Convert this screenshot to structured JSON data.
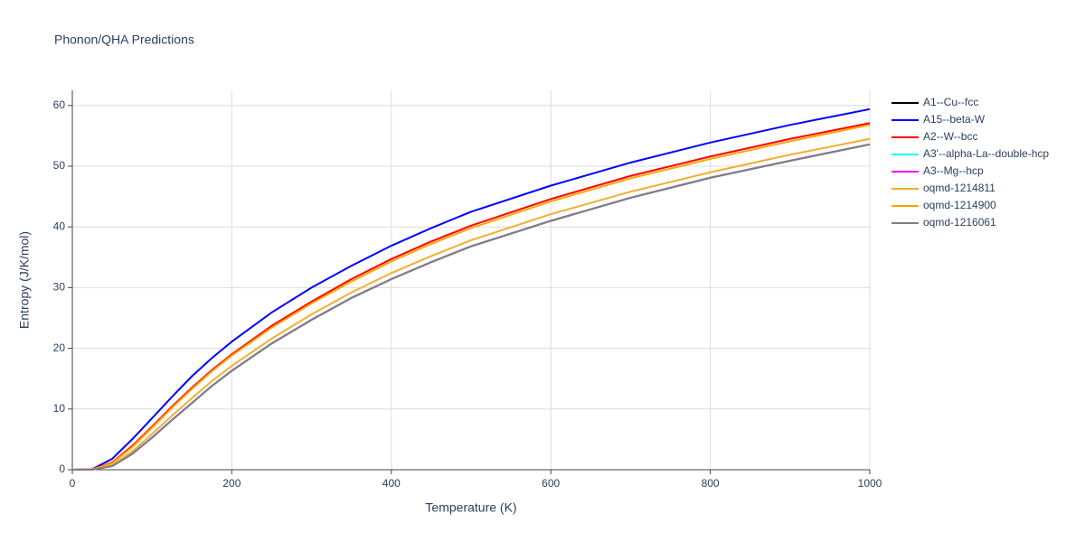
{
  "chart_data": {
    "type": "line",
    "title": "Phonon/QHA Predictions",
    "x_label": "Temperature (K)",
    "y_label": "Entropy (J/K/mol)",
    "x": [
      0,
      25,
      50,
      75,
      100,
      125,
      150,
      175,
      200,
      250,
      300,
      350,
      400,
      450,
      500,
      600,
      700,
      800,
      900,
      1000
    ],
    "series": [
      {
        "name": "A1--Cu--fcc",
        "color": "#000000",
        "values": [
          0,
          0.01,
          0.6,
          2.6,
          5.3,
          8.2,
          11.0,
          13.8,
          16.3,
          20.8,
          24.7,
          28.3,
          31.4,
          34.2,
          36.8,
          41.0,
          44.8,
          48.1,
          50.9,
          53.6
        ]
      },
      {
        "name": "A15--beta-W",
        "color": "#0000ff",
        "values": [
          0,
          0.1,
          1.8,
          5.0,
          8.5,
          12.0,
          15.4,
          18.4,
          21.1,
          25.9,
          30.0,
          33.6,
          36.9,
          39.8,
          42.5,
          46.8,
          50.6,
          53.9,
          56.8,
          59.4
        ]
      },
      {
        "name": "A2--W--bcc",
        "color": "#ff0000",
        "values": [
          0,
          0.05,
          1.2,
          3.9,
          7.1,
          10.4,
          13.5,
          16.4,
          19.0,
          23.7,
          27.7,
          31.4,
          34.7,
          37.6,
          40.2,
          44.6,
          48.4,
          51.6,
          54.5,
          57.1
        ]
      },
      {
        "name": "A3'--alpha-La--double-hcp",
        "color": "#00ffff",
        "values": [
          0,
          0.01,
          0.6,
          2.6,
          5.3,
          8.2,
          11.0,
          13.8,
          16.3,
          20.8,
          24.7,
          28.3,
          31.4,
          34.2,
          36.8,
          41.0,
          44.8,
          48.1,
          50.9,
          53.6
        ]
      },
      {
        "name": "A3--Mg--hcp",
        "color": "#ff00ff",
        "values": [
          0,
          0.01,
          0.6,
          2.6,
          5.3,
          8.2,
          11.0,
          13.8,
          16.3,
          20.8,
          24.7,
          28.3,
          31.4,
          34.2,
          36.8,
          41.0,
          44.8,
          48.1,
          50.9,
          53.6
        ]
      },
      {
        "name": "oqmd-1214811",
        "color": "#f0b030",
        "values": [
          0,
          0.02,
          0.8,
          3.0,
          5.9,
          8.9,
          11.8,
          14.6,
          17.1,
          21.6,
          25.6,
          29.2,
          32.4,
          35.2,
          37.8,
          42.1,
          45.8,
          49.0,
          51.9,
          54.5
        ]
      },
      {
        "name": "oqmd-1214900",
        "color": "#ffa500",
        "values": [
          0,
          0.05,
          1.1,
          3.7,
          6.9,
          10.2,
          13.3,
          16.2,
          18.8,
          23.4,
          27.4,
          31.0,
          34.3,
          37.2,
          39.8,
          44.2,
          48.0,
          51.2,
          54.1,
          56.8
        ]
      },
      {
        "name": "oqmd-1216061",
        "color": "#808080",
        "values": [
          0,
          0.01,
          0.6,
          2.6,
          5.3,
          8.2,
          11.0,
          13.8,
          16.3,
          20.8,
          24.7,
          28.3,
          31.4,
          34.2,
          36.8,
          41.0,
          44.8,
          48.1,
          50.9,
          53.6
        ]
      }
    ],
    "xlim": [
      0,
      1000
    ],
    "xticks": [
      0,
      200,
      400,
      600,
      800,
      1000
    ],
    "ylim": [
      0,
      62.5
    ],
    "yticks": [
      0,
      10,
      20,
      30,
      40,
      50,
      60
    ],
    "grid": true
  }
}
